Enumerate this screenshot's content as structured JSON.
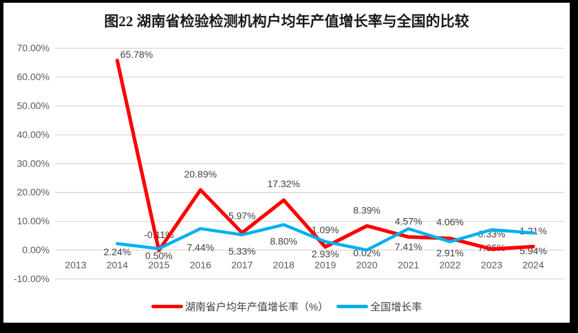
{
  "window": {
    "frame_color": "#000000",
    "background_color": "#FFFFFF"
  },
  "chart_data": {
    "type": "line",
    "title": "图22 湖南省检验检测机构户均年产值增长率与全国的比较",
    "categories": [
      "2013",
      "2014",
      "2015",
      "2016",
      "2017",
      "2018",
      "2019",
      "2020",
      "2021",
      "2022",
      "2023",
      "2024"
    ],
    "y_ticks": [
      "70.00%",
      "60.00%",
      "50.00%",
      "40.00%",
      "30.00%",
      "20.00%",
      "10.00%",
      "0.00%",
      "-10.00%"
    ],
    "ylim": [
      -10,
      70
    ],
    "y_tick_step": 10,
    "grid": true,
    "legend_position": "bottom",
    "series": [
      {
        "name": "湖南省户均年产值增长率（%）",
        "color": "#FE0000",
        "values": [
          null,
          65.78,
          -0.11,
          20.89,
          5.97,
          17.32,
          1.09,
          8.39,
          4.57,
          4.06,
          0.33,
          1.21
        ],
        "labels": [
          null,
          "65.78%",
          "-0.11%",
          "20.89%",
          "5.97%",
          "17.32%",
          "1.09%",
          "8.39%",
          "4.57%",
          "4.06%",
          "0.33%",
          "1.21%"
        ]
      },
      {
        "name": "全国增长率",
        "color": "#00B0F0",
        "values": [
          null,
          2.24,
          0.5,
          7.44,
          5.33,
          8.8,
          2.93,
          0.02,
          7.41,
          2.91,
          7.06,
          5.94
        ],
        "labels": [
          null,
          "2.24%",
          "0.50%",
          "7.44%",
          "5.33%",
          "8.80%",
          "2.93%",
          "0.02%",
          "7.41%",
          "2.91%",
          "7.06%",
          "5.94%"
        ]
      }
    ],
    "colors": {
      "gridline": "#D9D9D9",
      "axis_text": "#595959",
      "data_label_text": "#3F3F3F"
    }
  }
}
